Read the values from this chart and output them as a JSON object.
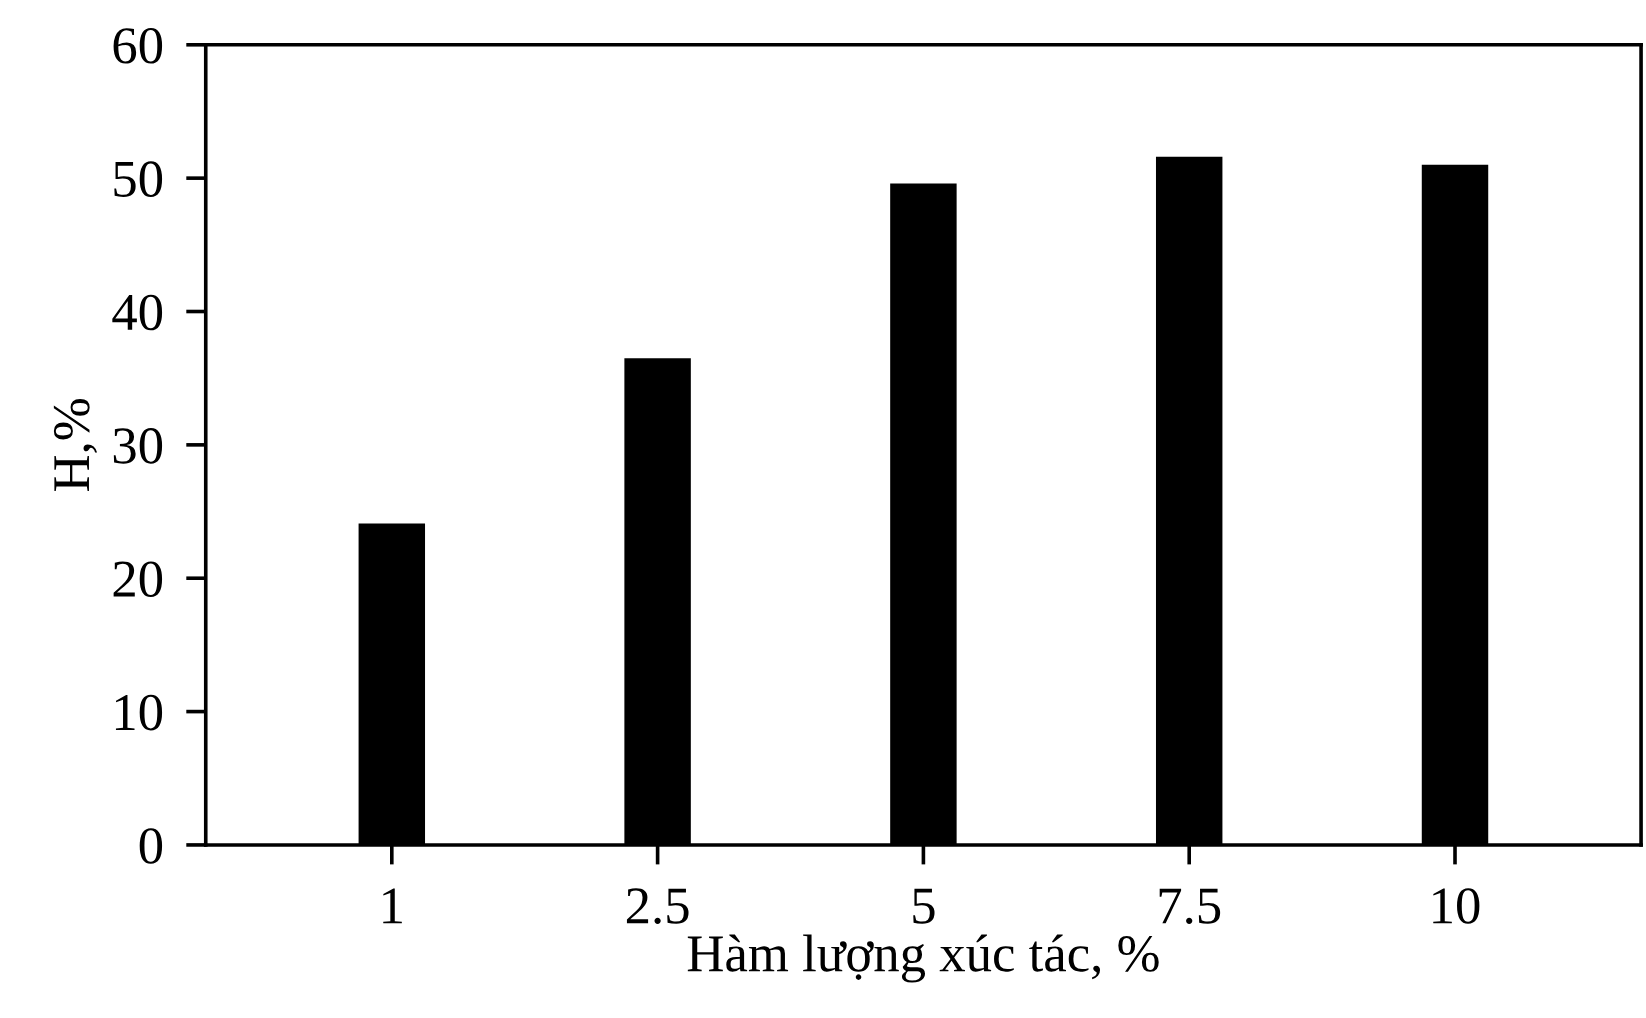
{
  "chart_data": {
    "type": "bar",
    "xlabel": "Hàm lượng xúc tác, %",
    "ylabel": "H,%",
    "categories": [
      "1",
      "2.5",
      "5",
      "7.5",
      "10"
    ],
    "values": [
      24.1,
      36.5,
      49.6,
      51.6,
      51.0
    ],
    "color": "#000000",
    "ylim": [
      0,
      60
    ],
    "yticks": [
      0,
      10,
      20,
      30,
      40,
      50,
      60
    ],
    "grid": false,
    "legend": false
  }
}
